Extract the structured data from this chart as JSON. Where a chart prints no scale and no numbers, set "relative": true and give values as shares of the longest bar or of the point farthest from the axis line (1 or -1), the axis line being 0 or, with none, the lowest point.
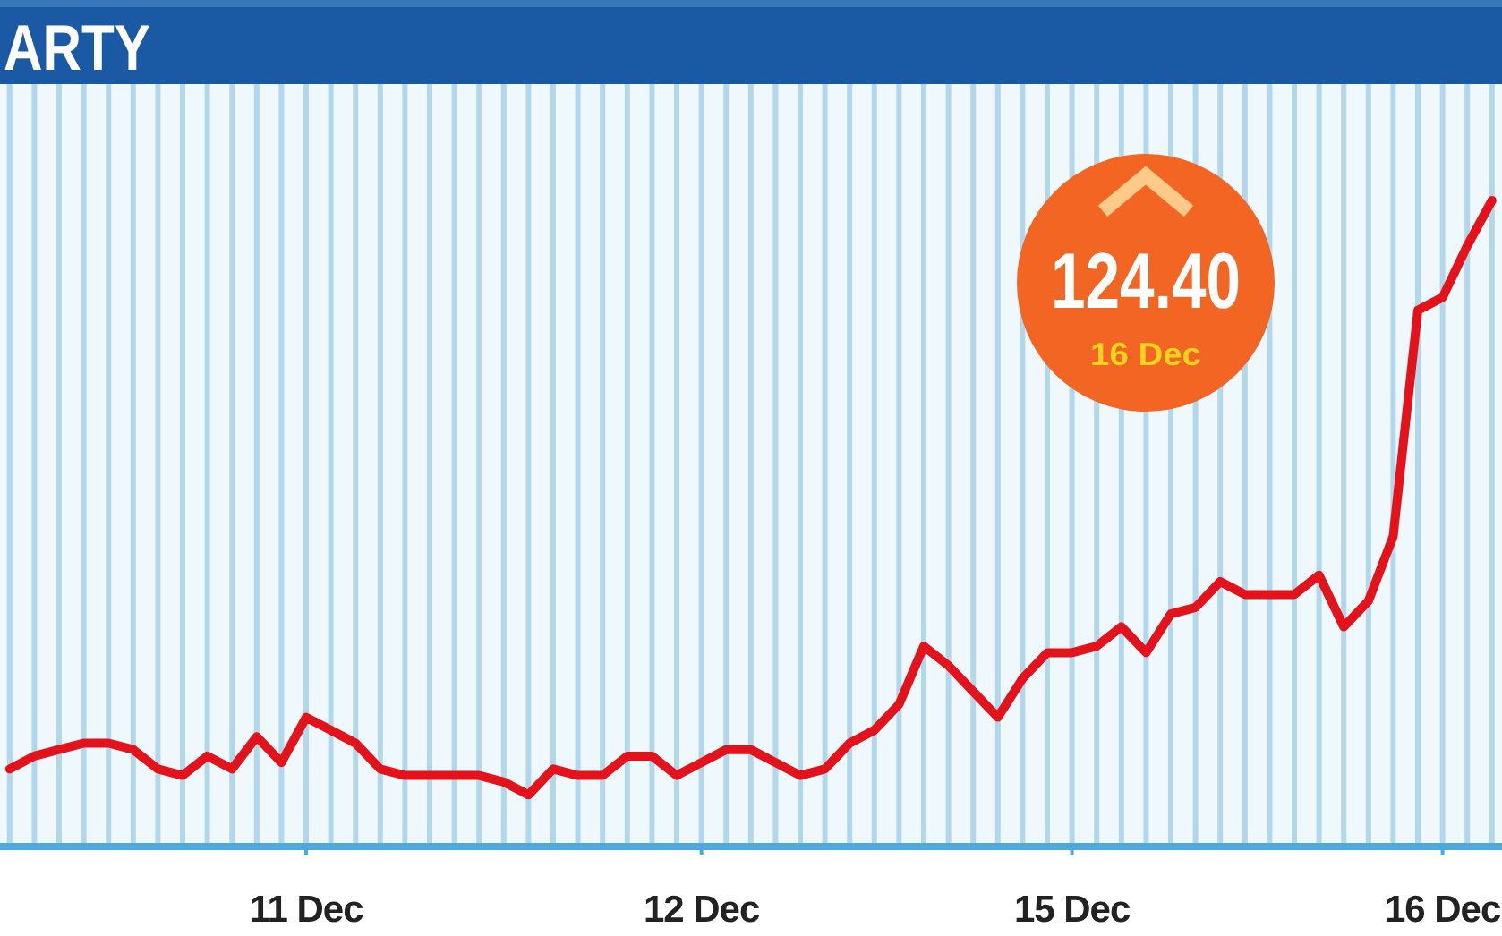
{
  "chart_data": {
    "type": "line",
    "title": "ARTY",
    "categories": [
      null,
      null,
      null,
      null,
      null,
      null,
      null,
      null,
      null,
      null,
      null,
      null,
      "11 Dec",
      null,
      null,
      null,
      null,
      null,
      null,
      null,
      null,
      null,
      null,
      null,
      null,
      null,
      null,
      null,
      "12 Dec",
      null,
      null,
      null,
      null,
      null,
      null,
      null,
      null,
      null,
      null,
      null,
      null,
      null,
      null,
      "15 Dec",
      null,
      null,
      null,
      null,
      null,
      null,
      null,
      null,
      null,
      null,
      null,
      null,
      null,
      null,
      "16 Dec",
      null,
      null
    ],
    "values": [
      0.12,
      0.14,
      0.15,
      0.16,
      0.16,
      0.15,
      0.12,
      0.11,
      0.14,
      0.12,
      0.17,
      0.13,
      0.2,
      0.18,
      0.16,
      0.12,
      0.11,
      0.11,
      0.11,
      0.11,
      0.1,
      0.08,
      0.12,
      0.11,
      0.11,
      0.14,
      0.14,
      0.11,
      0.13,
      0.15,
      0.15,
      0.13,
      0.11,
      0.12,
      0.16,
      0.18,
      0.22,
      0.31,
      0.28,
      0.24,
      0.2,
      0.26,
      0.3,
      0.3,
      0.31,
      0.34,
      0.3,
      0.36,
      0.37,
      0.41,
      0.39,
      0.39,
      0.39,
      0.42,
      0.34,
      0.38,
      0.48,
      0.83,
      0.85,
      0.93,
      1
    ],
    "color": "#e3121b",
    "relative": true,
    "grid": "x",
    "annotations": [
      "124.40",
      "16 Dec"
    ]
  }
}
